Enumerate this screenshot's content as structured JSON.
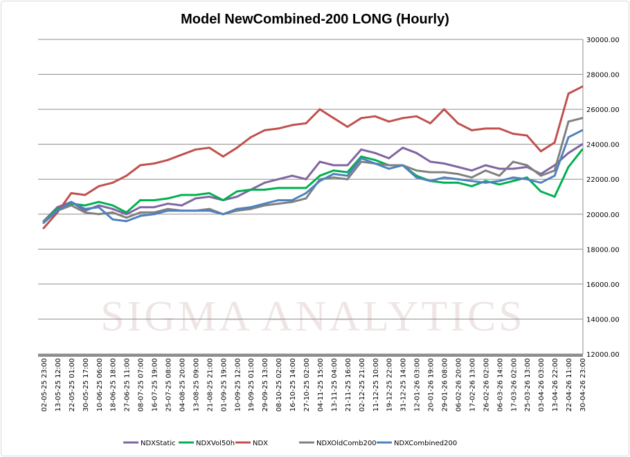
{
  "chart_data": {
    "type": "line",
    "title": "Model NewCombined-200 LONG (Hourly)",
    "xlabel": "",
    "ylabel": "",
    "ylim": [
      12000,
      30000
    ],
    "y_ticks": [
      "12000.00",
      "14000.00",
      "16000.00",
      "18000.00",
      "20000.00",
      "22000.00",
      "24000.00",
      "26000.00",
      "28000.00",
      "30000.00"
    ],
    "y_axis_position": "right",
    "grid": true,
    "legend_position": "bottom",
    "watermark": "SIGMA ANALYTICS",
    "x": [
      "02-05-25 23:00",
      "13-05-25 12:00",
      "22-05-25 01:00",
      "30-05-25 17:00",
      "10-06-25 06:00",
      "18-06-25 18:00",
      "27-06-25 11:00",
      "08-07-25 07:00",
      "16-07-25 19:00",
      "25-07-25 08:00",
      "04-08-25 20:00",
      "13-08-25 09:00",
      "21-08-25 21:00",
      "01-09-25 19:00",
      "10-09-25 12:00",
      "19-09-25 01:00",
      "29-09-25 13:00",
      "08-10-25 02:00",
      "16-10-25 14:00",
      "27-10-25 02:00",
      "04-11-25 15:00",
      "13-11-25 04:00",
      "21-11-25 16:00",
      "02-12-25 21:00",
      "11-12-25 10:00",
      "19-12-25 22:00",
      "31-12-25 14:00",
      "12-01-26 03:00",
      "20-01-26 19:00",
      "29-01-26 08:00",
      "06-02-26 20:00",
      "17-02-26 13:00",
      "26-02-26 02:00",
      "06-03-26 14:00",
      "17-03-26 02:00",
      "25-03-26 13:00",
      "03-04-26 03:00",
      "13-04-26 22:00",
      "22-04-26 11:00",
      "30-04-26 23:00"
    ],
    "x_full": [
      "02-05-25 23:00",
      "13-05-25 12:00",
      "22-05-25 01:00",
      "30-05-25 17:00",
      "10-06-25 06:00",
      "18-06-25 18:00",
      "27-06-25 11:00",
      "08-07-25 07:00",
      "16-07-25 19:00",
      "25-07-25 08:00",
      "04-08-25 20:00",
      "13-08-25 09:00",
      "21-08-25 21:00",
      "01-09-25 19:00",
      "10-09-25 12:00",
      "19-09-25 01:00",
      "29-09-25 13:00",
      "08-10-25 02:00",
      "16-10-25 14:00",
      "27-10-25 02:00",
      "04-11-25 15:00",
      "13-11-25 04:00",
      "21-11-25 16:00",
      "02-12-25 21:00",
      "11-12-25 10:00",
      "19-12-25 22:00",
      "31-12-25 14:00",
      "12-01-26 03:00",
      "20-01-26 19:00",
      "29-01-26 08:00",
      "06-02-26 20:00",
      "17-02-26 13:00",
      "26-02-26 02:00",
      "06-03-26 14:00",
      "17-03-26 02:00",
      "25-03-26 13:00",
      "03-04-26 03:00",
      "13-04-26 22:00",
      "22-04-26 11:00",
      "30-04-26 23:00"
    ],
    "series": [
      {
        "name": "NDXStatic",
        "color": "#8064A2",
        "values": [
          19600,
          20400,
          20700,
          20200,
          20500,
          20300,
          20000,
          20400,
          20400,
          20600,
          20500,
          20900,
          21000,
          20800,
          21000,
          21400,
          21800,
          22000,
          22200,
          22000,
          23000,
          22800,
          22800,
          23700,
          23500,
          23200,
          23800,
          23500,
          23000,
          22900,
          22700,
          22500,
          22800,
          22600,
          22600,
          22700,
          22300,
          22800,
          23500,
          24000
        ]
      },
      {
        "name": "NDXVol50h",
        "color": "#00B050",
        "values": [
          19600,
          20300,
          20600,
          20500,
          20700,
          20500,
          20100,
          20800,
          20800,
          20900,
          21100,
          21100,
          21200,
          20800,
          21300,
          21400,
          21400,
          21500,
          21500,
          21500,
          22200,
          22500,
          22400,
          23300,
          23100,
          22800,
          22800,
          22200,
          21900,
          21800,
          21800,
          21600,
          21900,
          21700,
          21900,
          22100,
          21300,
          21000,
          22700,
          23700
        ]
      },
      {
        "name": "NDX",
        "color": "#C0504D",
        "values": [
          19200,
          20100,
          21200,
          21100,
          21600,
          21800,
          22200,
          22800,
          22900,
          23100,
          23400,
          23700,
          23800,
          23300,
          23800,
          24400,
          24800,
          24900,
          25100,
          25200,
          26000,
          25500,
          25000,
          25500,
          25600,
          25300,
          25500,
          25600,
          25200,
          26000,
          25200,
          24800,
          24900,
          24900,
          24600,
          24500,
          23600,
          24100,
          26900,
          27300
        ]
      },
      {
        "name": "NDXOldComb200",
        "color": "#808080",
        "values": [
          19600,
          20200,
          20500,
          20100,
          20000,
          20100,
          19800,
          20100,
          20100,
          20300,
          20200,
          20200,
          20300,
          20000,
          20200,
          20300,
          20500,
          20600,
          20700,
          20900,
          22000,
          22100,
          22000,
          23000,
          22900,
          22800,
          22800,
          22500,
          22400,
          22400,
          22300,
          22100,
          22500,
          22200,
          23000,
          22800,
          22200,
          22500,
          25300,
          25500
        ]
      },
      {
        "name": "NDXCombined200",
        "color": "#4F81BD",
        "values": [
          19500,
          20200,
          20700,
          20300,
          20400,
          19700,
          19600,
          19900,
          20000,
          20200,
          20200,
          20200,
          20200,
          20000,
          20300,
          20400,
          20600,
          20800,
          20800,
          21200,
          21900,
          22300,
          22200,
          23200,
          22900,
          22600,
          22800,
          22100,
          21900,
          22100,
          22000,
          21900,
          21800,
          21900,
          22100,
          22000,
          21800,
          22200,
          24400,
          24800
        ]
      }
    ]
  }
}
